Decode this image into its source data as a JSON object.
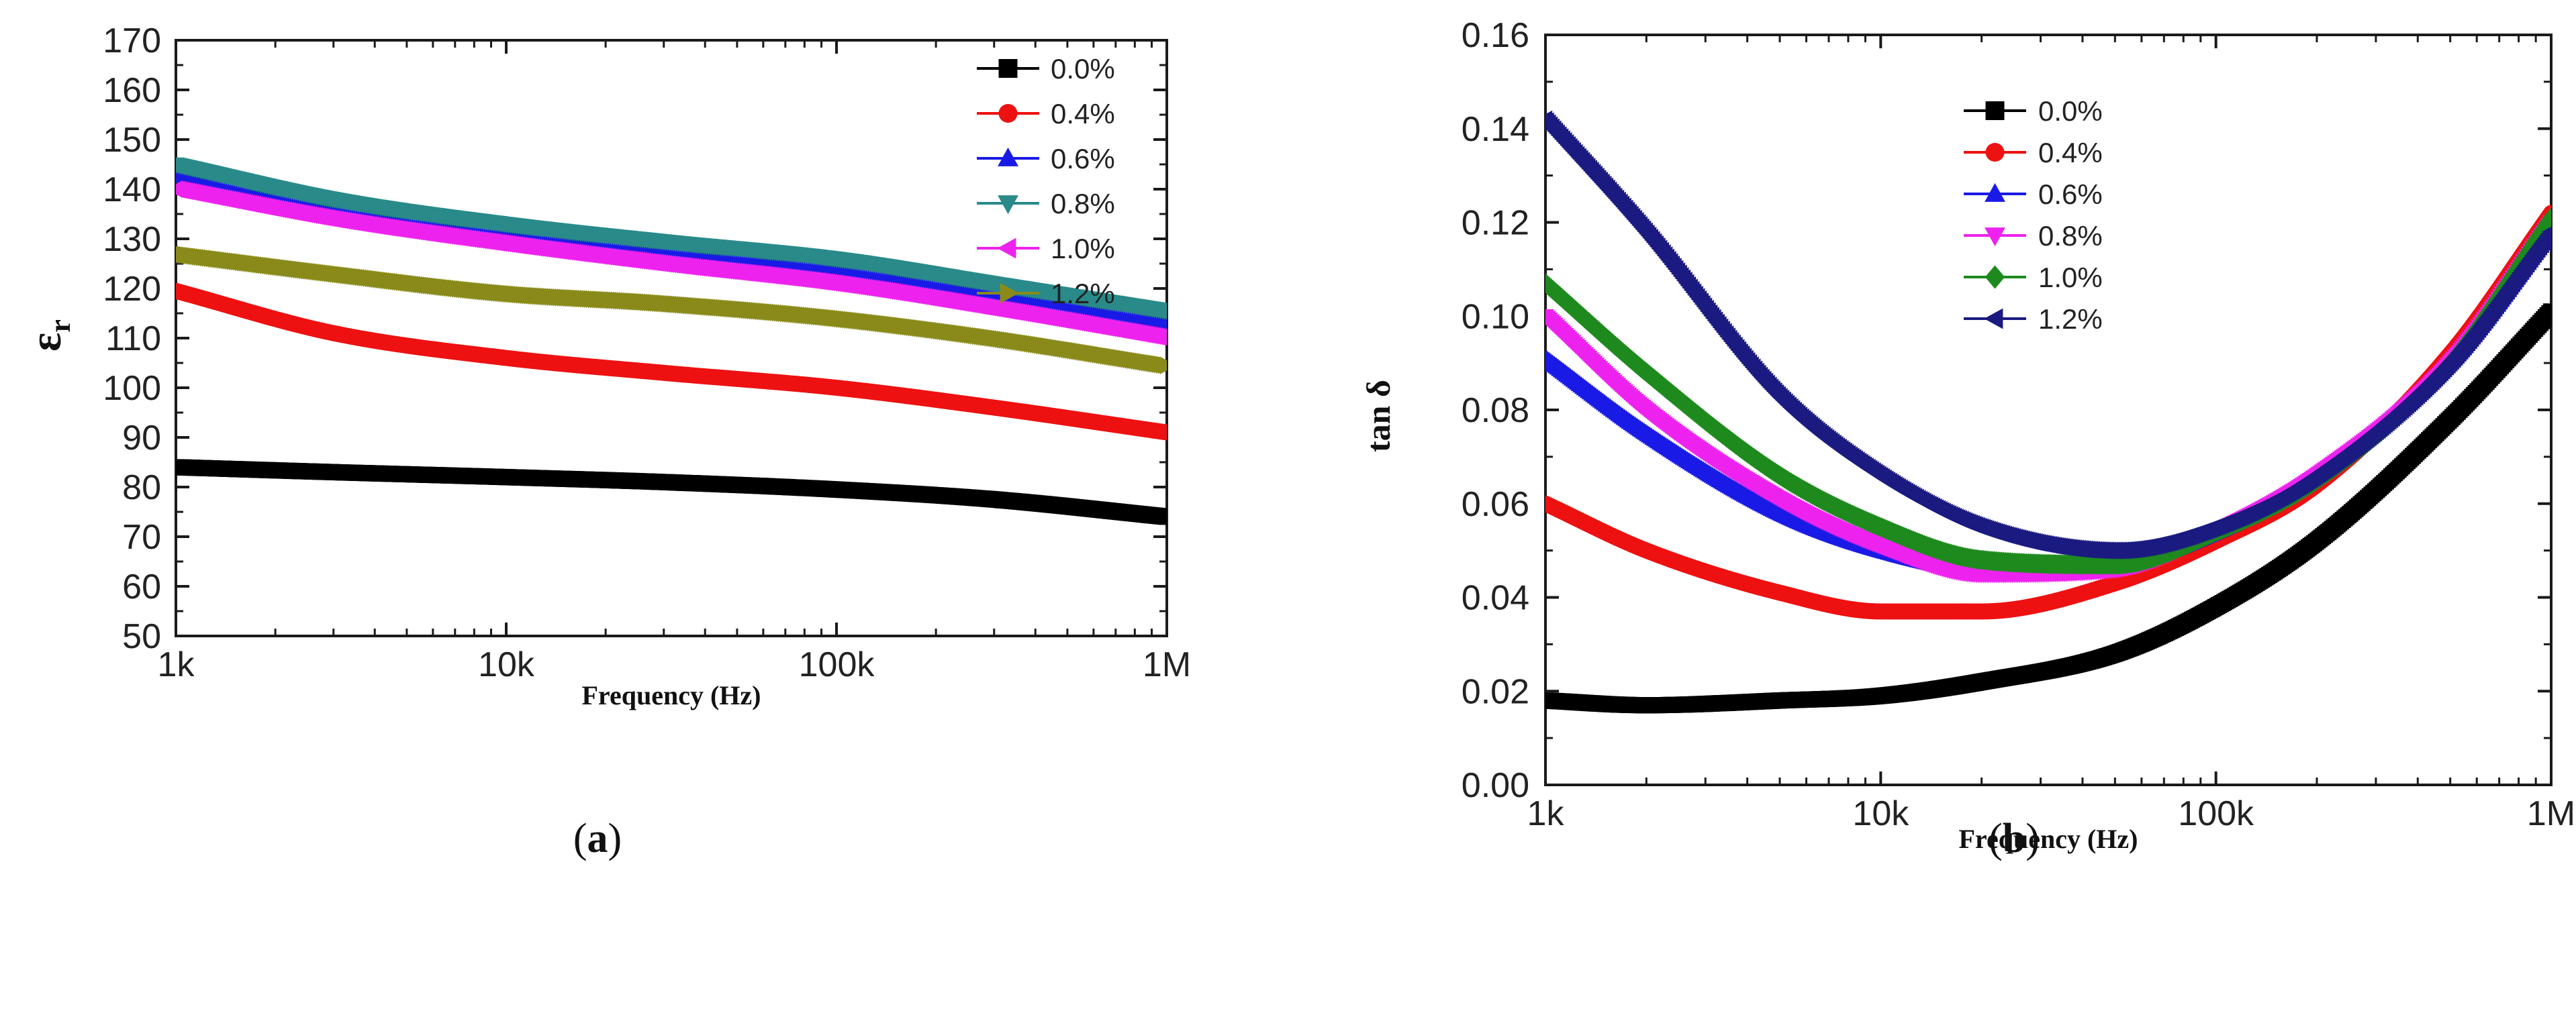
{
  "chart_data": [
    {
      "type": "line",
      "panel": "a",
      "caption_letter": "a",
      "title": "",
      "xlabel": "Frequency (Hz)",
      "ylabel": "ε",
      "ylabel_sub": "r",
      "xscale": "log",
      "xlim": [
        1000,
        1000000
      ],
      "ylim": [
        50,
        170
      ],
      "x_ticks": [
        1000,
        10000,
        100000,
        1000000
      ],
      "x_tick_labels": [
        "1k",
        "10k",
        "100k",
        "1M"
      ],
      "y_ticks": [
        50,
        60,
        70,
        80,
        90,
        100,
        110,
        120,
        130,
        140,
        150,
        160,
        170
      ],
      "y_tick_labels": [
        "50",
        "60",
        "70",
        "80",
        "90",
        "100",
        "110",
        "120",
        "130",
        "140",
        "150",
        "160",
        "170"
      ],
      "legend_position": "top-right",
      "x": [
        1000,
        3000,
        10000,
        30000,
        100000,
        300000,
        1000000
      ],
      "series": [
        {
          "name": "0.0%",
          "marker": "square",
          "color": "#000000",
          "values": [
            84,
            83,
            82,
            81,
            79.5,
            77.5,
            74
          ]
        },
        {
          "name": "0.4%",
          "marker": "circle",
          "color": "#ee1111",
          "values": [
            119.5,
            111,
            106,
            103,
            100,
            96,
            91
          ]
        },
        {
          "name": "0.6%",
          "marker": "triangle-up",
          "color": "#1a1ae6",
          "values": [
            143,
            137,
            132,
            128,
            124,
            119,
            113
          ]
        },
        {
          "name": "0.8%",
          "marker": "triangle-down",
          "color": "#2a8a8a",
          "values": [
            145,
            138,
            133,
            129.5,
            126,
            121,
            115.5
          ]
        },
        {
          "name": "1.0%",
          "marker": "triangle-left",
          "color": "#ee22ee",
          "values": [
            140,
            134,
            129,
            125,
            121,
            116,
            110
          ]
        },
        {
          "name": "1.2%",
          "marker": "triangle-right",
          "color": "#8a8a1a",
          "values": [
            127,
            123,
            119,
            117,
            114,
            110,
            104.5
          ]
        }
      ]
    },
    {
      "type": "line",
      "panel": "b",
      "caption_letter": "b",
      "title": "",
      "xlabel": "Frequency (Hz)",
      "ylabel": "tan δ",
      "xscale": "log",
      "xlim": [
        1000,
        1000000
      ],
      "ylim": [
        0.0,
        0.16
      ],
      "x_ticks": [
        1000,
        10000,
        100000,
        1000000
      ],
      "x_tick_labels": [
        "1k",
        "10k",
        "100k",
        "1M"
      ],
      "y_ticks": [
        0.0,
        0.02,
        0.04,
        0.06,
        0.08,
        0.1,
        0.12,
        0.14,
        0.16
      ],
      "y_tick_labels": [
        "0.00",
        "0.02",
        "0.04",
        "0.06",
        "0.08",
        "0.10",
        "0.12",
        "0.14",
        "0.16"
      ],
      "legend_position": "top-center",
      "x": [
        1000,
        2000,
        5000,
        10000,
        20000,
        50000,
        100000,
        200000,
        500000,
        1000000
      ],
      "series": [
        {
          "name": "0.0%",
          "marker": "square",
          "color": "#000000",
          "values": [
            0.018,
            0.017,
            0.018,
            0.019,
            0.022,
            0.028,
            0.038,
            0.052,
            0.078,
            0.101
          ]
        },
        {
          "name": "0.4%",
          "marker": "circle",
          "color": "#ee1111",
          "values": [
            0.06,
            0.05,
            0.041,
            0.037,
            0.037,
            0.043,
            0.052,
            0.064,
            0.092,
            0.122
          ]
        },
        {
          "name": "0.6%",
          "marker": "triangle-up",
          "color": "#1a1ae6",
          "values": [
            0.091,
            0.075,
            0.058,
            0.05,
            0.046,
            0.047,
            0.054,
            0.066,
            0.09,
            0.118
          ]
        },
        {
          "name": "0.8%",
          "marker": "triangle-down",
          "color": "#ee22ee",
          "values": [
            0.1,
            0.08,
            0.061,
            0.051,
            0.045,
            0.046,
            0.054,
            0.066,
            0.09,
            0.12
          ]
        },
        {
          "name": "1.0%",
          "marker": "diamond",
          "color": "#1e8a1e",
          "values": [
            0.107,
            0.088,
            0.066,
            0.055,
            0.048,
            0.047,
            0.054,
            0.065,
            0.09,
            0.121
          ]
        },
        {
          "name": "1.2%",
          "marker": "triangle-left",
          "color": "#1a1a80",
          "values": [
            0.142,
            0.118,
            0.083,
            0.066,
            0.055,
            0.05,
            0.055,
            0.066,
            0.09,
            0.118
          ]
        }
      ]
    }
  ]
}
